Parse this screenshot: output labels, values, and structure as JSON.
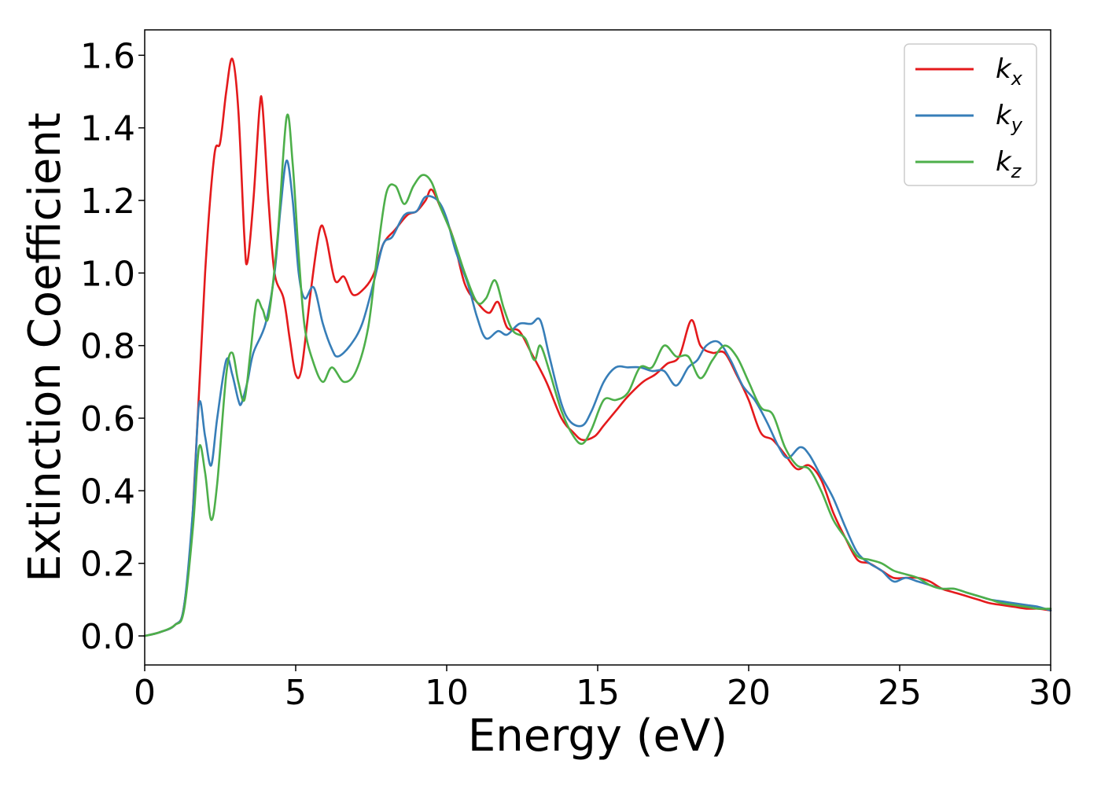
{
  "chart_data": {
    "type": "line",
    "xlabel": "Energy (eV)",
    "ylabel": "Extinction Coefficient",
    "xlim": [
      0,
      30
    ],
    "ylim": [
      -0.08,
      1.67
    ],
    "xticks": [
      0,
      5,
      10,
      15,
      20,
      25,
      30
    ],
    "yticks": [
      0.0,
      0.2,
      0.4,
      0.6,
      0.8,
      1.0,
      1.2,
      1.4,
      1.6
    ],
    "grid": false,
    "legend_position": "top-right",
    "series": [
      {
        "name": "kx",
        "base": "k",
        "sub": "x",
        "color": "#e41a1c",
        "points": [
          [
            0,
            0
          ],
          [
            0.5,
            0.01
          ],
          [
            1.0,
            0.03
          ],
          [
            1.3,
            0.08
          ],
          [
            1.6,
            0.35
          ],
          [
            2.0,
            1.0
          ],
          [
            2.3,
            1.32
          ],
          [
            2.5,
            1.36
          ],
          [
            2.7,
            1.5
          ],
          [
            2.9,
            1.59
          ],
          [
            3.1,
            1.45
          ],
          [
            3.3,
            1.1
          ],
          [
            3.4,
            1.03
          ],
          [
            3.6,
            1.2
          ],
          [
            3.8,
            1.45
          ],
          [
            3.9,
            1.46
          ],
          [
            4.1,
            1.2
          ],
          [
            4.3,
            1.0
          ],
          [
            4.6,
            0.93
          ],
          [
            4.8,
            0.82
          ],
          [
            5.0,
            0.72
          ],
          [
            5.2,
            0.74
          ],
          [
            5.5,
            0.95
          ],
          [
            5.8,
            1.12
          ],
          [
            6.0,
            1.1
          ],
          [
            6.3,
            0.98
          ],
          [
            6.6,
            0.99
          ],
          [
            6.9,
            0.94
          ],
          [
            7.3,
            0.96
          ],
          [
            7.6,
            1.0
          ],
          [
            7.9,
            1.08
          ],
          [
            8.3,
            1.12
          ],
          [
            8.7,
            1.16
          ],
          [
            9.0,
            1.17
          ],
          [
            9.3,
            1.2
          ],
          [
            9.5,
            1.23
          ],
          [
            9.8,
            1.18
          ],
          [
            10.2,
            1.1
          ],
          [
            10.6,
            0.97
          ],
          [
            11.0,
            0.92
          ],
          [
            11.4,
            0.89
          ],
          [
            11.7,
            0.92
          ],
          [
            12.0,
            0.85
          ],
          [
            12.4,
            0.84
          ],
          [
            12.8,
            0.78
          ],
          [
            13.3,
            0.7
          ],
          [
            13.8,
            0.6
          ],
          [
            14.2,
            0.56
          ],
          [
            14.5,
            0.54
          ],
          [
            14.9,
            0.55
          ],
          [
            15.2,
            0.58
          ],
          [
            15.6,
            0.62
          ],
          [
            16.0,
            0.66
          ],
          [
            16.5,
            0.7
          ],
          [
            16.9,
            0.72
          ],
          [
            17.3,
            0.75
          ],
          [
            17.7,
            0.77
          ],
          [
            18.1,
            0.87
          ],
          [
            18.4,
            0.8
          ],
          [
            18.8,
            0.78
          ],
          [
            19.2,
            0.78
          ],
          [
            19.6,
            0.72
          ],
          [
            20.0,
            0.65
          ],
          [
            20.4,
            0.56
          ],
          [
            20.8,
            0.54
          ],
          [
            21.2,
            0.5
          ],
          [
            21.6,
            0.46
          ],
          [
            22.0,
            0.47
          ],
          [
            22.4,
            0.43
          ],
          [
            22.8,
            0.34
          ],
          [
            23.2,
            0.27
          ],
          [
            23.6,
            0.21
          ],
          [
            24.0,
            0.2
          ],
          [
            24.4,
            0.18
          ],
          [
            24.8,
            0.16
          ],
          [
            25.2,
            0.16
          ],
          [
            25.6,
            0.16
          ],
          [
            26.0,
            0.15
          ],
          [
            26.4,
            0.13
          ],
          [
            26.8,
            0.12
          ],
          [
            27.2,
            0.11
          ],
          [
            27.6,
            0.1
          ],
          [
            28.0,
            0.09
          ],
          [
            28.4,
            0.085
          ],
          [
            28.8,
            0.08
          ],
          [
            29.2,
            0.075
          ],
          [
            29.6,
            0.075
          ],
          [
            30.0,
            0.07
          ]
        ]
      },
      {
        "name": "ky",
        "base": "k",
        "sub": "y",
        "color": "#377eb8",
        "points": [
          [
            0,
            0
          ],
          [
            0.5,
            0.01
          ],
          [
            1.0,
            0.03
          ],
          [
            1.3,
            0.08
          ],
          [
            1.6,
            0.35
          ],
          [
            1.8,
            0.64
          ],
          [
            2.0,
            0.55
          ],
          [
            2.2,
            0.47
          ],
          [
            2.4,
            0.6
          ],
          [
            2.7,
            0.76
          ],
          [
            2.9,
            0.72
          ],
          [
            3.1,
            0.65
          ],
          [
            3.2,
            0.64
          ],
          [
            3.4,
            0.7
          ],
          [
            3.6,
            0.78
          ],
          [
            4.0,
            0.86
          ],
          [
            4.3,
            1.0
          ],
          [
            4.5,
            1.18
          ],
          [
            4.7,
            1.31
          ],
          [
            4.9,
            1.2
          ],
          [
            5.1,
            1.0
          ],
          [
            5.3,
            0.93
          ],
          [
            5.6,
            0.96
          ],
          [
            5.9,
            0.86
          ],
          [
            6.2,
            0.79
          ],
          [
            6.4,
            0.77
          ],
          [
            6.8,
            0.8
          ],
          [
            7.2,
            0.86
          ],
          [
            7.6,
            0.98
          ],
          [
            7.9,
            1.08
          ],
          [
            8.2,
            1.1
          ],
          [
            8.6,
            1.16
          ],
          [
            9.0,
            1.17
          ],
          [
            9.3,
            1.21
          ],
          [
            9.7,
            1.2
          ],
          [
            10.0,
            1.15
          ],
          [
            10.3,
            1.06
          ],
          [
            10.7,
            0.97
          ],
          [
            11.0,
            0.88
          ],
          [
            11.3,
            0.82
          ],
          [
            11.7,
            0.84
          ],
          [
            12.0,
            0.83
          ],
          [
            12.4,
            0.86
          ],
          [
            12.8,
            0.86
          ],
          [
            13.1,
            0.87
          ],
          [
            13.4,
            0.77
          ],
          [
            13.8,
            0.64
          ],
          [
            14.1,
            0.59
          ],
          [
            14.5,
            0.58
          ],
          [
            14.8,
            0.62
          ],
          [
            15.2,
            0.7
          ],
          [
            15.6,
            0.74
          ],
          [
            16.0,
            0.74
          ],
          [
            16.4,
            0.74
          ],
          [
            16.8,
            0.73
          ],
          [
            17.2,
            0.73
          ],
          [
            17.6,
            0.69
          ],
          [
            18.0,
            0.74
          ],
          [
            18.3,
            0.76
          ],
          [
            18.6,
            0.8
          ],
          [
            19.0,
            0.81
          ],
          [
            19.4,
            0.76
          ],
          [
            19.8,
            0.69
          ],
          [
            20.2,
            0.65
          ],
          [
            20.6,
            0.59
          ],
          [
            21.0,
            0.52
          ],
          [
            21.3,
            0.49
          ],
          [
            21.7,
            0.52
          ],
          [
            22.0,
            0.5
          ],
          [
            22.4,
            0.44
          ],
          [
            22.8,
            0.38
          ],
          [
            23.2,
            0.3
          ],
          [
            23.6,
            0.23
          ],
          [
            24.0,
            0.2
          ],
          [
            24.4,
            0.18
          ],
          [
            24.8,
            0.15
          ],
          [
            25.2,
            0.16
          ],
          [
            25.6,
            0.15
          ],
          [
            26.0,
            0.14
          ],
          [
            26.4,
            0.13
          ],
          [
            26.8,
            0.13
          ],
          [
            27.2,
            0.12
          ],
          [
            27.6,
            0.11
          ],
          [
            28.0,
            0.1
          ],
          [
            28.4,
            0.095
          ],
          [
            28.8,
            0.09
          ],
          [
            29.2,
            0.085
          ],
          [
            29.6,
            0.08
          ],
          [
            30.0,
            0.07
          ]
        ]
      },
      {
        "name": "kz",
        "base": "k",
        "sub": "z",
        "color": "#4daf4a",
        "points": [
          [
            0,
            0
          ],
          [
            0.5,
            0.01
          ],
          [
            1.0,
            0.03
          ],
          [
            1.3,
            0.07
          ],
          [
            1.6,
            0.3
          ],
          [
            1.8,
            0.52
          ],
          [
            2.0,
            0.45
          ],
          [
            2.2,
            0.32
          ],
          [
            2.4,
            0.42
          ],
          [
            2.7,
            0.72
          ],
          [
            2.9,
            0.78
          ],
          [
            3.1,
            0.7
          ],
          [
            3.3,
            0.65
          ],
          [
            3.5,
            0.78
          ],
          [
            3.7,
            0.92
          ],
          [
            3.9,
            0.9
          ],
          [
            4.1,
            0.88
          ],
          [
            4.4,
            1.1
          ],
          [
            4.7,
            1.43
          ],
          [
            4.9,
            1.3
          ],
          [
            5.1,
            1.05
          ],
          [
            5.3,
            0.85
          ],
          [
            5.6,
            0.75
          ],
          [
            5.9,
            0.7
          ],
          [
            6.2,
            0.74
          ],
          [
            6.6,
            0.7
          ],
          [
            7.0,
            0.73
          ],
          [
            7.4,
            0.85
          ],
          [
            7.7,
            1.05
          ],
          [
            8.0,
            1.22
          ],
          [
            8.3,
            1.24
          ],
          [
            8.6,
            1.19
          ],
          [
            8.9,
            1.24
          ],
          [
            9.2,
            1.27
          ],
          [
            9.5,
            1.25
          ],
          [
            9.8,
            1.18
          ],
          [
            10.2,
            1.1
          ],
          [
            10.6,
            1.0
          ],
          [
            11.0,
            0.92
          ],
          [
            11.3,
            0.93
          ],
          [
            11.6,
            0.98
          ],
          [
            11.9,
            0.9
          ],
          [
            12.2,
            0.84
          ],
          [
            12.6,
            0.82
          ],
          [
            12.9,
            0.76
          ],
          [
            13.1,
            0.8
          ],
          [
            13.4,
            0.73
          ],
          [
            13.8,
            0.62
          ],
          [
            14.2,
            0.55
          ],
          [
            14.5,
            0.53
          ],
          [
            14.8,
            0.57
          ],
          [
            15.2,
            0.65
          ],
          [
            15.6,
            0.65
          ],
          [
            16.0,
            0.67
          ],
          [
            16.4,
            0.74
          ],
          [
            16.8,
            0.74
          ],
          [
            17.2,
            0.8
          ],
          [
            17.6,
            0.77
          ],
          [
            18.0,
            0.77
          ],
          [
            18.4,
            0.71
          ],
          [
            18.8,
            0.76
          ],
          [
            19.2,
            0.8
          ],
          [
            19.6,
            0.77
          ],
          [
            20.0,
            0.7
          ],
          [
            20.4,
            0.63
          ],
          [
            20.8,
            0.61
          ],
          [
            21.2,
            0.52
          ],
          [
            21.6,
            0.47
          ],
          [
            22.0,
            0.46
          ],
          [
            22.4,
            0.4
          ],
          [
            22.8,
            0.32
          ],
          [
            23.2,
            0.27
          ],
          [
            23.6,
            0.22
          ],
          [
            24.0,
            0.21
          ],
          [
            24.4,
            0.2
          ],
          [
            24.8,
            0.18
          ],
          [
            25.2,
            0.17
          ],
          [
            25.6,
            0.16
          ],
          [
            26.0,
            0.14
          ],
          [
            26.4,
            0.13
          ],
          [
            26.8,
            0.13
          ],
          [
            27.2,
            0.12
          ],
          [
            27.6,
            0.11
          ],
          [
            28.0,
            0.1
          ],
          [
            28.4,
            0.09
          ],
          [
            28.8,
            0.085
          ],
          [
            29.2,
            0.08
          ],
          [
            29.6,
            0.075
          ],
          [
            30.0,
            0.075
          ]
        ]
      }
    ]
  }
}
